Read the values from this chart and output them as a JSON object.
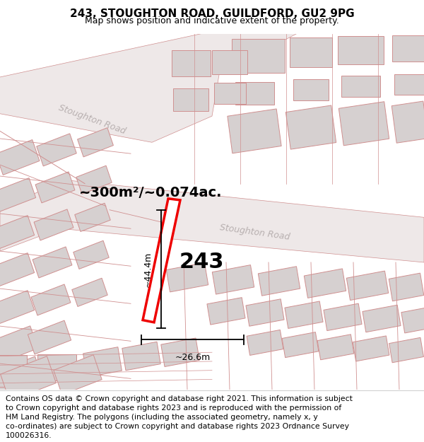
{
  "title": "243, STOUGHTON ROAD, GUILDFORD, GU2 9PG",
  "subtitle": "Map shows position and indicative extent of the property.",
  "area_text": "~300m²/~0.074ac.",
  "dimension_width": "~26.6m",
  "dimension_height": "~44.4m",
  "property_number": "243",
  "footer_lines": [
    "Contains OS data © Crown copyright and database right 2021. This information is subject to Crown copyright and database rights 2023 and is reproduced with the permission of",
    "HM Land Registry. The polygons (including the associated geometry, namely x, y",
    "co-ordinates) are subject to Crown copyright and database rights 2023 Ordnance Survey",
    "100026316."
  ],
  "map_bg": "#f5efef",
  "bld_fill": "#d6d0d0",
  "bld_edge": "#d09090",
  "road_fill": "#ede8e8",
  "road_edge": "#d09090",
  "cad_line": "#d09090",
  "highlight": "#ee0000",
  "road_label_color": "#b8b0b0",
  "title_fs": 11,
  "subtitle_fs": 9,
  "area_fs": 14,
  "num_fs": 22,
  "dim_fs": 9,
  "footer_fs": 7.8,
  "road_fs": 9
}
